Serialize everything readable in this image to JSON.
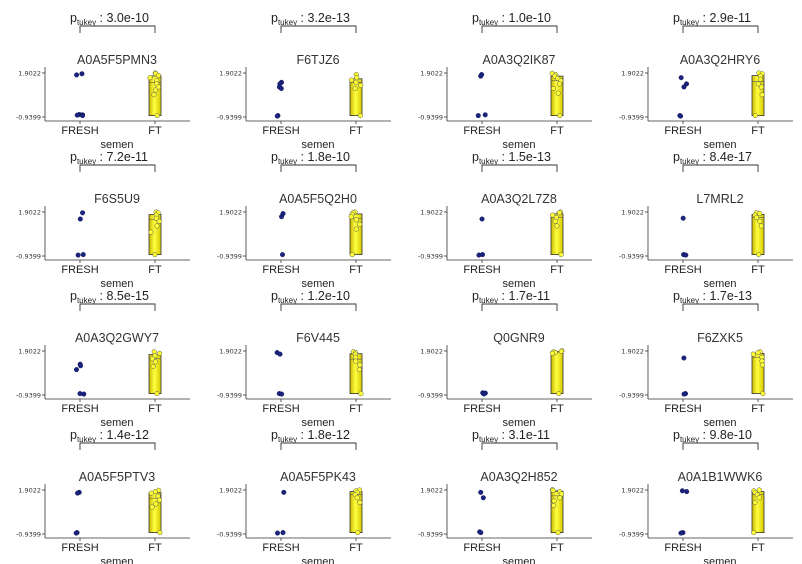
{
  "chart_data": {
    "type": "scatter",
    "y_ticks": [
      "1.9022",
      "-0.9399"
    ],
    "ylim": [
      -0.9399,
      1.9022
    ],
    "groups": [
      "FRESH",
      "FT"
    ],
    "x_label": "semen",
    "p_prefix": "p",
    "p_sub": "tukey",
    "panels": [
      {
        "title": "A0A5F5PMN3",
        "p": ": 3.0e-10",
        "fresh": [
          1.85,
          1.78,
          -0.78,
          -0.8,
          -0.82,
          -0.85
        ],
        "ft": [
          1.9,
          1.85,
          1.75,
          1.6,
          1.4,
          1.2,
          1.0,
          0.8,
          0.5,
          -0.85
        ]
      },
      {
        "title": "F6TJZ6",
        "p": ": 3.2e-13",
        "fresh": [
          1.3,
          1.2,
          1.0,
          0.9,
          -0.85,
          -0.88
        ],
        "ft": [
          1.8,
          1.6,
          1.45,
          1.3,
          1.1,
          0.9,
          -0.85
        ]
      },
      {
        "title": "A0A3Q2IK87",
        "p": ": 1.0e-10",
        "fresh": [
          1.8,
          1.7,
          -0.8,
          -0.85
        ],
        "ft": [
          1.88,
          1.8,
          1.7,
          1.55,
          1.4,
          1.2,
          0.9,
          0.6,
          -0.85
        ]
      },
      {
        "title": "A0A3Q2HRY6",
        "p": ": 2.9e-11",
        "fresh": [
          1.6,
          1.2,
          1.0,
          -0.85,
          -0.88
        ],
        "ft": [
          1.9,
          1.85,
          1.7,
          1.5,
          1.2,
          1.0,
          0.5,
          -0.85
        ]
      },
      {
        "title": "F6S5U9",
        "p": ": 7.2e-11",
        "fresh": [
          1.85,
          1.45,
          -0.85,
          -0.88
        ],
        "ft": [
          1.9,
          1.85,
          1.7,
          1.5,
          1.3,
          1.0,
          0.6,
          -0.85
        ]
      },
      {
        "title": "A0A5F5Q2H0",
        "p": ": 1.8e-10",
        "fresh": [
          1.8,
          1.6,
          -0.85
        ],
        "ft": [
          1.9,
          1.85,
          1.75,
          1.6,
          1.4,
          1.1,
          0.8,
          -0.85
        ]
      },
      {
        "title": "A0A3Q2L7Z8",
        "p": ": 1.5e-13",
        "fresh": [
          1.45,
          -0.85,
          -0.88
        ],
        "ft": [
          1.9,
          1.85,
          1.7,
          1.55,
          1.3,
          1.0,
          -0.85
        ]
      },
      {
        "title": "L7MRL2",
        "p": ": 8.4e-17",
        "fresh": [
          1.5,
          -0.85,
          -0.88
        ],
        "ft": [
          1.85,
          1.8,
          1.7,
          1.55,
          1.3,
          1.0,
          -0.85
        ]
      },
      {
        "title": "A0A3Q2GWY7",
        "p": ": 8.5e-15",
        "fresh": [
          1.05,
          0.95,
          0.7,
          -0.85,
          -0.88
        ],
        "ft": [
          1.85,
          1.75,
          1.6,
          1.4,
          1.2,
          0.9,
          -0.85
        ]
      },
      {
        "title": "F6V445",
        "p": ": 1.2e-10",
        "fresh": [
          1.8,
          1.7,
          -0.85,
          -0.88
        ],
        "ft": [
          1.85,
          1.8,
          1.7,
          1.5,
          1.25,
          1.0,
          0.7,
          -0.85
        ]
      },
      {
        "title": "Q0GNR9",
        "p": ": 1.7e-11",
        "fresh": [
          -0.8,
          -0.82,
          -0.85,
          -0.87
        ],
        "ft": [
          1.92,
          1.88,
          1.85,
          1.8,
          1.75,
          -0.85
        ]
      },
      {
        "title": "F6ZXK5",
        "p": ": 1.7e-13",
        "fresh": [
          1.45,
          -0.85,
          -0.88
        ],
        "ft": [
          1.85,
          1.8,
          1.7,
          1.5,
          1.25,
          1.0,
          -0.85
        ]
      },
      {
        "title": "A0A5F5PTV3",
        "p": ": 1.4e-12",
        "fresh": [
          1.75,
          1.7,
          -0.85,
          -0.88
        ],
        "ft": [
          1.88,
          1.8,
          1.7,
          1.5,
          1.25,
          1.0,
          0.8,
          -0.85
        ]
      },
      {
        "title": "A0A5F5PK43",
        "p": ": 1.8e-12",
        "fresh": [
          1.75,
          -0.85,
          -0.88
        ],
        "ft": [
          1.9,
          1.85,
          1.75,
          1.6,
          1.4,
          1.1,
          -0.85
        ]
      },
      {
        "title": "A0A3Q2H852",
        "p": ": 3.1e-11",
        "fresh": [
          1.75,
          1.4,
          -0.8,
          -0.85
        ],
        "ft": [
          1.92,
          1.88,
          1.8,
          1.65,
          1.4,
          1.2,
          0.9,
          -0.85
        ]
      },
      {
        "title": "A0A1B1WWK6",
        "p": ": 9.8e-10",
        "fresh": [
          1.85,
          1.8,
          -0.85,
          -0.88
        ],
        "ft": [
          1.9,
          1.85,
          1.75,
          1.6,
          1.4,
          1.1,
          -0.85
        ]
      }
    ]
  }
}
